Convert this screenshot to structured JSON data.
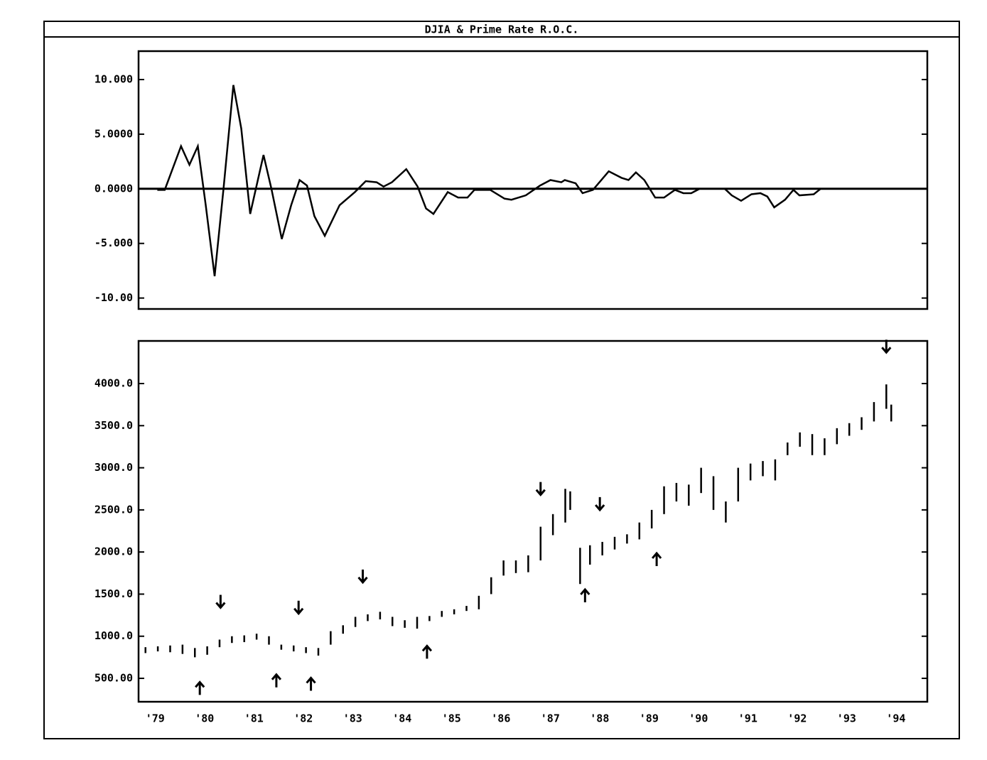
{
  "title": "DJIA & Prime Rate R.O.C.",
  "chart_data": [
    {
      "type": "line",
      "color": "#000000",
      "xlim": [
        1978.86,
        1994.83
      ],
      "ylim": [
        -11,
        12.6
      ],
      "yticks": [
        {
          "value": 10,
          "label": "10.000"
        },
        {
          "value": 5,
          "label": "5.0000"
        },
        {
          "value": 0,
          "label": "0.0000"
        },
        {
          "value": -5,
          "label": "-5.000"
        },
        {
          "value": -10,
          "label": "-10.00"
        }
      ],
      "x": [
        1979.24,
        1979.39,
        1979.72,
        1979.89,
        1980.06,
        1980.22,
        1980.4,
        1980.58,
        1980.78,
        1980.94,
        1981.12,
        1981.39,
        1981.55,
        1981.76,
        1981.95,
        1982.12,
        1982.27,
        1982.42,
        1982.63,
        1982.93,
        1983.24,
        1983.46,
        1983.68,
        1983.82,
        1983.99,
        1984.28,
        1984.51,
        1984.68,
        1984.83,
        1985.12,
        1985.33,
        1985.52,
        1985.66,
        1985.98,
        1986.27,
        1986.41,
        1986.7,
        1986.99,
        1987.2,
        1987.42,
        1987.49,
        1987.71,
        1987.85,
        1988.06,
        1988.38,
        1988.64,
        1988.78,
        1988.93,
        1989.1,
        1989.32,
        1989.5,
        1989.72,
        1989.89,
        1990.05,
        1990.22,
        1990.73,
        1990.87,
        1991.06,
        1991.27,
        1991.45,
        1991.59,
        1991.73,
        1991.95,
        1992.12,
        1992.24,
        1992.53,
        1992.67,
        1993.89,
        1993.99
      ],
      "values": [
        -0.1,
        -0.1,
        3.9,
        2.2,
        3.9,
        -1.5,
        -8.0,
        0,
        9.5,
        5.5,
        -2.3,
        3.1,
        0,
        -4.6,
        -1.5,
        0.8,
        0.3,
        -2.5,
        -4.3,
        -1.5,
        -0.3,
        0.7,
        0.6,
        0.2,
        0.6,
        1.8,
        0.2,
        -1.8,
        -2.3,
        -0.3,
        -0.8,
        -0.8,
        -0.1,
        -0.1,
        -0.9,
        -1.0,
        -0.6,
        0.3,
        0.8,
        0.6,
        0.8,
        0.5,
        -0.4,
        -0.1,
        1.6,
        1.0,
        0.8,
        1.5,
        0.8,
        -0.8,
        -0.8,
        -0.1,
        -0.4,
        -0.4,
        0,
        0,
        -0.6,
        -1.1,
        -0.5,
        -0.4,
        -0.7,
        -1.7,
        -1.0,
        -0.1,
        -0.6,
        -0.5,
        0,
        null,
        0.6
      ]
    },
    {
      "type": "range",
      "color": "#000000",
      "xlim": [
        1978.86,
        1994.83
      ],
      "ylim": [
        222,
        4506
      ],
      "yticks": [
        {
          "value": 4000,
          "label": "4000.0"
        },
        {
          "value": 3500,
          "label": "3500.0"
        },
        {
          "value": 3000,
          "label": "3000.0"
        },
        {
          "value": 2500,
          "label": "2500.0"
        },
        {
          "value": 2000,
          "label": "2000.0"
        },
        {
          "value": 1500,
          "label": "1500.0"
        },
        {
          "value": 1000,
          "label": "1000.0"
        },
        {
          "value": 500,
          "label": "500.00"
        }
      ],
      "xticks": [
        {
          "value": 1979,
          "label": "'79"
        },
        {
          "value": 1980,
          "label": "'80"
        },
        {
          "value": 1981,
          "label": "'81"
        },
        {
          "value": 1982,
          "label": "'82"
        },
        {
          "value": 1983,
          "label": "'83"
        },
        {
          "value": 1984,
          "label": "'84"
        },
        {
          "value": 1985,
          "label": "'85"
        },
        {
          "value": 1986,
          "label": "'86"
        },
        {
          "value": 1987,
          "label": "'87"
        },
        {
          "value": 1988,
          "label": "'88"
        },
        {
          "value": 1989,
          "label": "'89"
        },
        {
          "value": 1990,
          "label": "'90"
        },
        {
          "value": 1991,
          "label": "'91"
        },
        {
          "value": 1992,
          "label": "'92"
        },
        {
          "value": 1993,
          "label": "'93"
        },
        {
          "value": 1994,
          "label": "'94"
        }
      ],
      "x": [
        1979.0,
        1979.25,
        1979.5,
        1979.75,
        1980.0,
        1980.25,
        1980.5,
        1980.75,
        1981.0,
        1981.25,
        1981.5,
        1981.75,
        1982.0,
        1982.25,
        1982.5,
        1982.75,
        1983.0,
        1983.25,
        1983.5,
        1983.75,
        1984.0,
        1984.25,
        1984.5,
        1984.75,
        1985.0,
        1985.25,
        1985.5,
        1985.75,
        1986.0,
        1986.25,
        1986.5,
        1986.75,
        1987.0,
        1987.25,
        1987.5,
        1987.6,
        1987.8,
        1988.0,
        1988.25,
        1988.5,
        1988.75,
        1989.0,
        1989.25,
        1989.5,
        1989.75,
        1990.0,
        1990.25,
        1990.5,
        1990.75,
        1991.0,
        1991.25,
        1991.5,
        1991.75,
        1992.0,
        1992.25,
        1992.5,
        1992.75,
        1993.0,
        1993.25,
        1993.5,
        1993.75,
        1994.0,
        1994.1
      ],
      "low": [
        800,
        820,
        810,
        790,
        750,
        780,
        870,
        920,
        930,
        960,
        900,
        840,
        820,
        800,
        770,
        900,
        1030,
        1110,
        1180,
        1200,
        1120,
        1100,
        1090,
        1180,
        1230,
        1260,
        1300,
        1320,
        1500,
        1720,
        1750,
        1760,
        1900,
        2200,
        2350,
        2500,
        1620,
        1850,
        1960,
        2030,
        2100,
        2150,
        2280,
        2450,
        2600,
        2550,
        2700,
        2500,
        2350,
        2600,
        2850,
        2900,
        2850,
        3150,
        3250,
        3150,
        3150,
        3280,
        3380,
        3450,
        3550,
        3700,
        3550
      ],
      "high": [
        870,
        880,
        890,
        900,
        860,
        880,
        960,
        1000,
        1010,
        1030,
        1000,
        900,
        890,
        870,
        860,
        1060,
        1130,
        1230,
        1260,
        1290,
        1230,
        1190,
        1230,
        1240,
        1300,
        1320,
        1360,
        1480,
        1700,
        1900,
        1900,
        1960,
        2300,
        2450,
        2750,
        2720,
        2050,
        2080,
        2120,
        2180,
        2210,
        2350,
        2500,
        2780,
        2820,
        2800,
        3000,
        2900,
        2600,
        3000,
        3050,
        3080,
        3100,
        3300,
        3420,
        3400,
        3350,
        3470,
        3530,
        3600,
        3780,
        3990,
        3750
      ],
      "sell_signals": [
        1980.52,
        1982.1,
        1983.4,
        1987.0,
        1988.2,
        1994.0
      ],
      "buy_signals": [
        1980.1,
        1981.65,
        1982.35,
        1984.7,
        1987.9,
        1989.35
      ]
    }
  ]
}
